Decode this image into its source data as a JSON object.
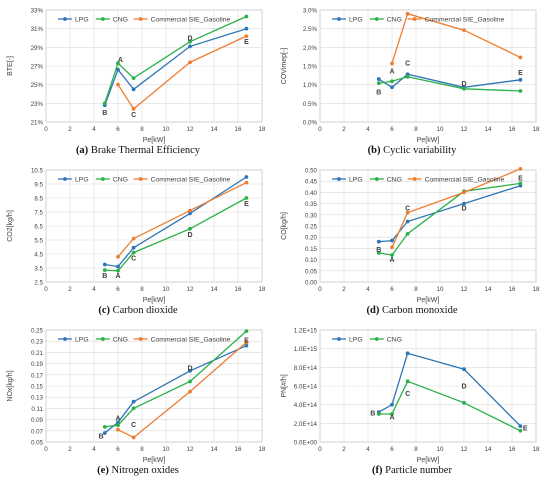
{
  "colors": {
    "LPG": "#2e75b6",
    "CNG": "#2bb04a",
    "Commercial SIE_Gasoline": "#ed7d31"
  },
  "chart_data": [
    {
      "type": "line",
      "panel_letter": "(a)",
      "caption": "Brake Thermal Efficiency",
      "xlabel": "Pe[kW]",
      "ylabel": "BTE[-]",
      "xlim": [
        0,
        18
      ],
      "ylim": [
        21,
        33
      ],
      "xticks": [
        "0",
        "2",
        "4",
        "6",
        "8",
        "10",
        "12",
        "14",
        "16",
        "18"
      ],
      "yticks": [
        "21%",
        "23%",
        "25%",
        "27%",
        "29%",
        "31%",
        "33%"
      ],
      "legend": [
        "LPG",
        "CNG",
        "Commercial SIE_Gasoline"
      ],
      "series": [
        {
          "name": "LPG",
          "x": [
            4.9,
            6.0,
            7.3,
            12.0,
            16.7
          ],
          "y": [
            22.8,
            26.6,
            24.5,
            29.1,
            31.0
          ]
        },
        {
          "name": "CNG",
          "x": [
            4.9,
            6.0,
            7.3,
            12.0,
            16.7
          ],
          "y": [
            23.0,
            27.3,
            25.7,
            29.6,
            32.3
          ]
        },
        {
          "name": "Commercial SIE_Gasoline",
          "x": [
            6.0,
            7.3,
            12.0,
            16.7
          ],
          "y": [
            25.0,
            22.4,
            27.4,
            30.2
          ]
        }
      ],
      "annotations": [
        {
          "text": "A",
          "x": 6.2,
          "y": 27.7
        },
        {
          "text": "B",
          "x": 4.9,
          "y": 22.0
        },
        {
          "text": "C",
          "x": 7.3,
          "y": 21.8
        },
        {
          "text": "D",
          "x": 12.0,
          "y": 30.0
        },
        {
          "text": "E",
          "x": 16.7,
          "y": 29.6
        }
      ]
    },
    {
      "type": "line",
      "panel_letter": "(b)",
      "caption": "Cyclic variability",
      "xlabel": "Pe[kW]",
      "ylabel": "COVimep[-]",
      "xlim": [
        0,
        18
      ],
      "ylim": [
        0,
        3
      ],
      "xticks": [
        "0",
        "2",
        "4",
        "6",
        "8",
        "10",
        "12",
        "14",
        "16",
        "18"
      ],
      "yticks": [
        "0.0%",
        "0.5%",
        "1.0%",
        "1.5%",
        "2.0%",
        "2.5%",
        "3.0%"
      ],
      "legend": [
        "LPG",
        "CNG",
        "Commercial SIE_Gasoline"
      ],
      "series": [
        {
          "name": "LPG",
          "x": [
            4.9,
            6.0,
            7.3,
            12.0,
            16.7
          ],
          "y": [
            1.15,
            0.93,
            1.28,
            0.93,
            1.13
          ]
        },
        {
          "name": "CNG",
          "x": [
            4.9,
            6.0,
            7.3,
            12.0,
            16.7
          ],
          "y": [
            1.04,
            1.09,
            1.21,
            0.89,
            0.83
          ]
        },
        {
          "name": "Commercial SIE_Gasoline",
          "x": [
            6.0,
            7.3,
            12.0,
            16.7
          ],
          "y": [
            1.57,
            2.9,
            2.46,
            1.73
          ]
        }
      ],
      "annotations": [
        {
          "text": "A",
          "x": 6.0,
          "y": 1.37
        },
        {
          "text": "B",
          "x": 4.9,
          "y": 0.8
        },
        {
          "text": "C",
          "x": 7.3,
          "y": 1.58
        },
        {
          "text": "D",
          "x": 12.0,
          "y": 1.03
        },
        {
          "text": "E",
          "x": 16.7,
          "y": 1.33
        }
      ]
    },
    {
      "type": "line",
      "panel_letter": "(c)",
      "caption": "Carbon dioxide",
      "xlabel": "Pe[kW]",
      "ylabel": "CO2[kg/h]",
      "xlim": [
        0,
        18
      ],
      "ylim": [
        2.5,
        10.5
      ],
      "xticks": [
        "0",
        "2",
        "4",
        "6",
        "8",
        "10",
        "12",
        "14",
        "16",
        "18"
      ],
      "yticks": [
        "2.5",
        "3.5",
        "4.5",
        "5.5",
        "6.5",
        "7.5",
        "8.5",
        "9.5",
        "10.5"
      ],
      "legend": [
        "LPG",
        "CNG",
        "Commercial SIE_Gasoline"
      ],
      "series": [
        {
          "name": "LPG",
          "x": [
            4.9,
            6.0,
            7.3,
            12.0,
            16.7
          ],
          "y": [
            3.75,
            3.6,
            4.95,
            7.4,
            10.0
          ]
        },
        {
          "name": "CNG",
          "x": [
            4.9,
            6.0,
            7.3,
            12.0,
            16.7
          ],
          "y": [
            3.35,
            3.3,
            4.6,
            6.3,
            8.5
          ]
        },
        {
          "name": "Commercial SIE_Gasoline",
          "x": [
            6.0,
            7.3,
            12.0,
            16.7
          ],
          "y": [
            4.3,
            5.6,
            7.6,
            9.6
          ]
        }
      ],
      "annotations": [
        {
          "text": "A",
          "x": 6.0,
          "y": 2.95
        },
        {
          "text": "B",
          "x": 4.9,
          "y": 2.95
        },
        {
          "text": "C",
          "x": 7.3,
          "y": 4.2
        },
        {
          "text": "D",
          "x": 12.0,
          "y": 5.9
        },
        {
          "text": "E",
          "x": 16.7,
          "y": 8.1
        }
      ]
    },
    {
      "type": "line",
      "panel_letter": "(d)",
      "caption": "Carbon monoxide",
      "xlabel": "Pe[kW]",
      "ylabel": "CO[kg/h]",
      "xlim": [
        0,
        18
      ],
      "ylim": [
        0,
        0.5
      ],
      "xticks": [
        "0",
        "2",
        "4",
        "6",
        "8",
        "10",
        "12",
        "14",
        "16",
        "18"
      ],
      "yticks": [
        "0.00",
        "0.05",
        "0.10",
        "0.15",
        "0.20",
        "0.25",
        "0.30",
        "0.35",
        "0.40",
        "0.45",
        "0.50"
      ],
      "legend": [
        "LPG",
        "CNG",
        "Commercial SIE_Gasoline"
      ],
      "series": [
        {
          "name": "LPG",
          "x": [
            4.9,
            6.0,
            7.3,
            12.0,
            16.7
          ],
          "y": [
            0.18,
            0.185,
            0.27,
            0.35,
            0.43
          ]
        },
        {
          "name": "CNG",
          "x": [
            4.9,
            6.0,
            7.3,
            12.0,
            16.7
          ],
          "y": [
            0.13,
            0.12,
            0.215,
            0.405,
            0.44
          ]
        },
        {
          "name": "Commercial SIE_Gasoline",
          "x": [
            6.0,
            7.3,
            12.0,
            16.7
          ],
          "y": [
            0.155,
            0.31,
            0.4,
            0.505
          ]
        }
      ],
      "annotations": [
        {
          "text": "A",
          "x": 6.0,
          "y": 0.1
        },
        {
          "text": "B",
          "x": 4.9,
          "y": 0.145
        },
        {
          "text": "C",
          "x": 7.3,
          "y": 0.33
        },
        {
          "text": "D",
          "x": 12.0,
          "y": 0.33
        },
        {
          "text": "E",
          "x": 16.7,
          "y": 0.465
        }
      ]
    },
    {
      "type": "line",
      "panel_letter": "(e)",
      "caption": "Nitrogen oxides",
      "xlabel": "Pe[kW]",
      "ylabel": "NOx[kg/h]",
      "xlim": [
        0,
        18
      ],
      "ylim": [
        0.05,
        0.25
      ],
      "xticks": [
        "0",
        "2",
        "4",
        "6",
        "8",
        "10",
        "12",
        "14",
        "16",
        "18"
      ],
      "yticks": [
        "0.05",
        "0.07",
        "0.09",
        "0.11",
        "0.13",
        "0.15",
        "0.17",
        "0.19",
        "0.21",
        "0.23",
        "0.25"
      ],
      "legend": [
        "LPG",
        "CNG",
        "Commercial SIE_Gasoline"
      ],
      "series": [
        {
          "name": "LPG",
          "x": [
            4.9,
            6.0,
            7.3,
            12.0,
            16.7
          ],
          "y": [
            0.066,
            0.085,
            0.122,
            0.177,
            0.222
          ]
        },
        {
          "name": "CNG",
          "x": [
            4.9,
            6.0,
            7.3,
            12.0,
            16.7
          ],
          "y": [
            0.077,
            0.08,
            0.11,
            0.158,
            0.248
          ]
        },
        {
          "name": "Commercial SIE_Gasoline",
          "x": [
            6.0,
            7.3,
            12.0,
            16.7
          ],
          "y": [
            0.072,
            0.058,
            0.14,
            0.228
          ]
        }
      ],
      "annotations": [
        {
          "text": "A",
          "x": 6.0,
          "y": 0.093
        },
        {
          "text": "B",
          "x": 4.6,
          "y": 0.061
        },
        {
          "text": "C",
          "x": 7.3,
          "y": 0.081
        },
        {
          "text": "D",
          "x": 12.0,
          "y": 0.182
        },
        {
          "text": "E",
          "x": 16.7,
          "y": 0.232
        }
      ]
    },
    {
      "type": "line",
      "panel_letter": "(f)",
      "caption": "Particle number",
      "xlabel": "Pe[kW]",
      "ylabel": "PN[#/h]",
      "xlim": [
        0,
        18
      ],
      "ylim": [
        0,
        1.2
      ],
      "xticks": [
        "0",
        "2",
        "4",
        "6",
        "8",
        "10",
        "12",
        "14",
        "16",
        "18"
      ],
      "yticks": [
        "0.0E+00",
        "2.0E+14",
        "4.0E+14",
        "6.0E+14",
        "8.0E+14",
        "1.0E+15",
        "1.2E+15"
      ],
      "legend": [
        "LPG",
        "CNG"
      ],
      "series": [
        {
          "name": "LPG",
          "x": [
            4.9,
            6.0,
            7.3,
            12.0,
            16.7
          ],
          "y": [
            0.32,
            0.4,
            0.95,
            0.78,
            0.17
          ]
        },
        {
          "name": "CNG",
          "x": [
            4.9,
            6.0,
            7.3,
            12.0,
            16.7
          ],
          "y": [
            0.3,
            0.3,
            0.65,
            0.42,
            0.12
          ]
        }
      ],
      "annotations": [
        {
          "text": "A",
          "x": 6.0,
          "y": 0.27
        },
        {
          "text": "B",
          "x": 4.4,
          "y": 0.31
        },
        {
          "text": "C",
          "x": 7.3,
          "y": 0.52
        },
        {
          "text": "D",
          "x": 12.0,
          "y": 0.6
        },
        {
          "text": "E",
          "x": 17.1,
          "y": 0.15
        }
      ]
    }
  ]
}
